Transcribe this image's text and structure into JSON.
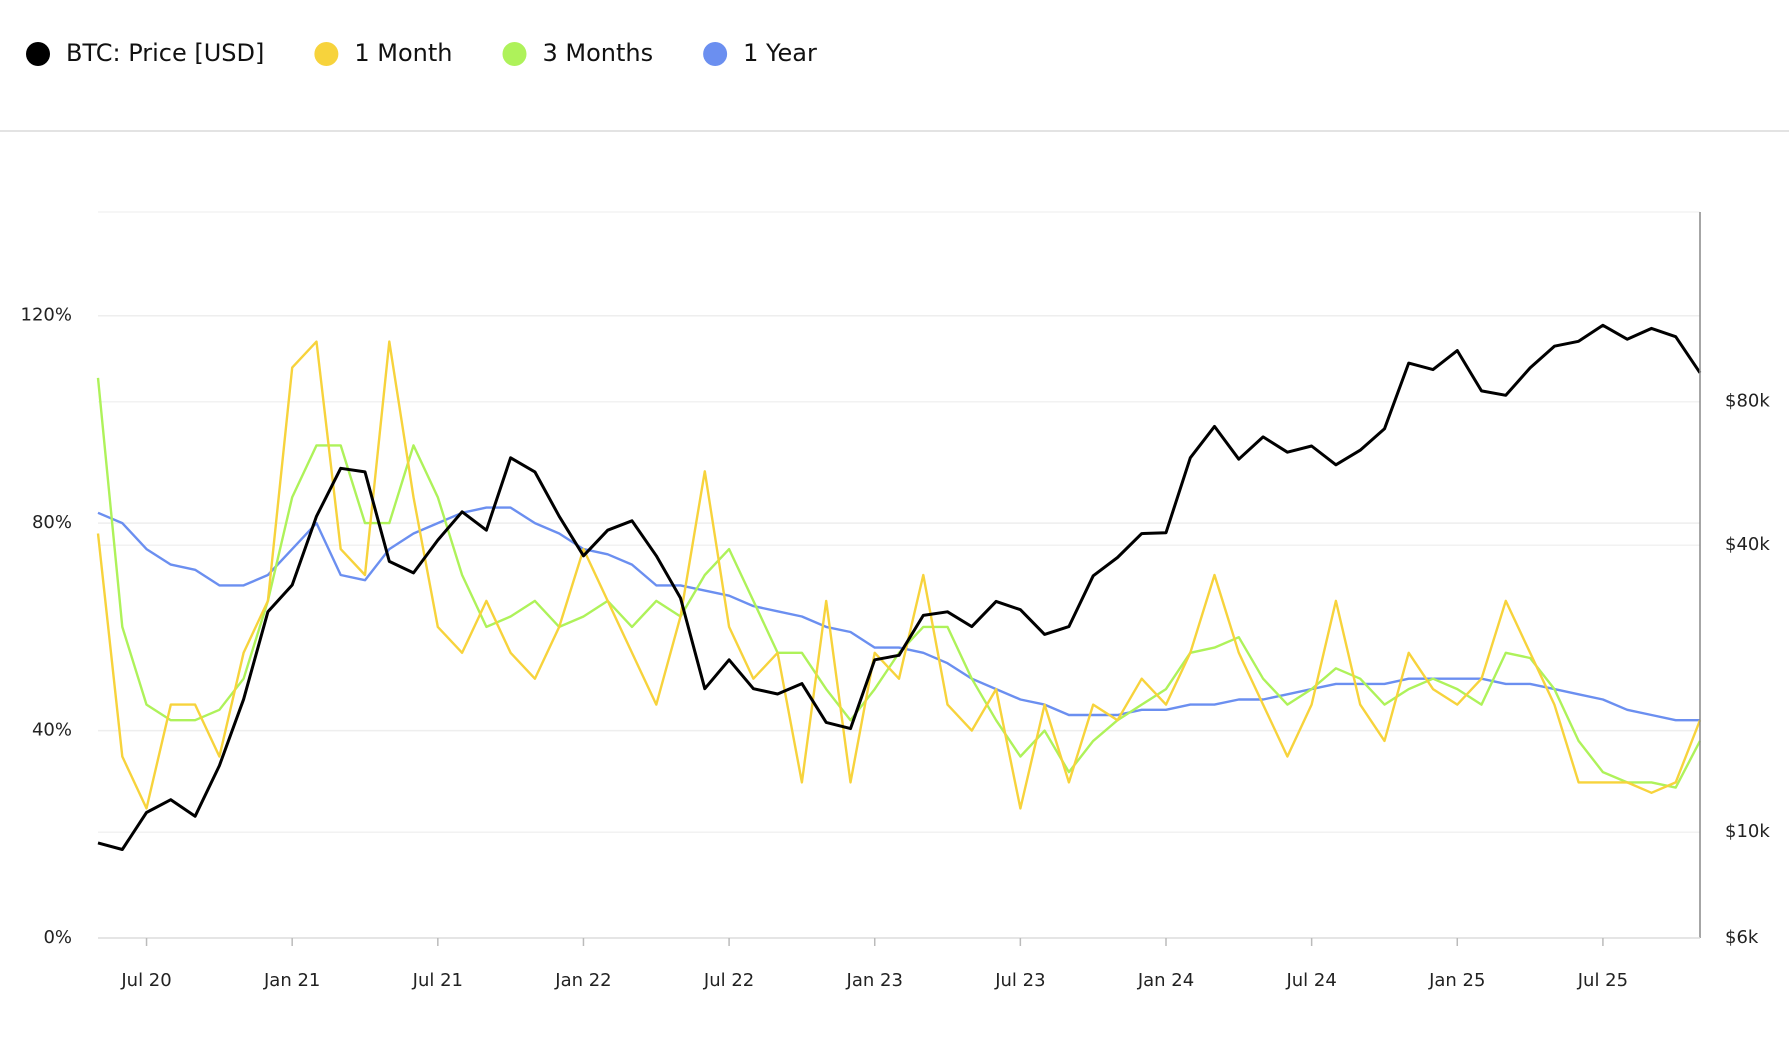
{
  "chart_data": {
    "type": "line",
    "x": [
      "2020-05",
      "2020-06",
      "2020-07",
      "2020-08",
      "2020-09",
      "2020-10",
      "2020-11",
      "2020-12",
      "2021-01",
      "2021-02",
      "2021-03",
      "2021-04",
      "2021-05",
      "2021-06",
      "2021-07",
      "2021-08",
      "2021-09",
      "2021-10",
      "2021-11",
      "2021-12",
      "2022-01",
      "2022-02",
      "2022-03",
      "2022-04",
      "2022-05",
      "2022-06",
      "2022-07",
      "2022-08",
      "2022-09",
      "2022-10",
      "2022-11",
      "2022-12",
      "2023-01",
      "2023-02",
      "2023-03",
      "2023-04",
      "2023-05",
      "2023-06",
      "2023-07",
      "2023-08",
      "2023-09",
      "2023-10",
      "2023-11",
      "2023-12",
      "2024-01",
      "2024-02",
      "2024-03",
      "2024-04",
      "2024-05",
      "2024-06",
      "2024-07",
      "2024-08",
      "2024-09",
      "2024-10",
      "2024-11",
      "2024-12",
      "2025-01",
      "2025-02",
      "2025-03",
      "2025-04",
      "2025-05",
      "2025-06",
      "2025-07",
      "2025-08",
      "2025-09",
      "2025-10",
      "2025-11"
    ],
    "xlim": [
      "2020-05",
      "2025-11"
    ],
    "xticks": [
      {
        "value": "2020-07",
        "label": "Jul 20"
      },
      {
        "value": "2021-01",
        "label": "Jan 21"
      },
      {
        "value": "2021-07",
        "label": "Jul 21"
      },
      {
        "value": "2022-01",
        "label": "Jan 22"
      },
      {
        "value": "2022-07",
        "label": "Jul 22"
      },
      {
        "value": "2023-01",
        "label": "Jan 23"
      },
      {
        "value": "2023-07",
        "label": "Jul 23"
      },
      {
        "value": "2024-01",
        "label": "Jan 24"
      },
      {
        "value": "2024-07",
        "label": "Jul 24"
      },
      {
        "value": "2025-01",
        "label": "Jan 25"
      },
      {
        "value": "2025-07",
        "label": "Jul 25"
      }
    ],
    "ylim": [
      0,
      140
    ],
    "yticks": [
      {
        "value": 0,
        "label": "0%"
      },
      {
        "value": 40,
        "label": "40%"
      },
      {
        "value": 80,
        "label": "80%"
      },
      {
        "value": 120,
        "label": "120%"
      }
    ],
    "y2lim": [
      6000,
      200000
    ],
    "y2scale": "log",
    "y2ticks": [
      {
        "value": 6000,
        "label": "$6k"
      },
      {
        "value": 10000,
        "label": "$10k"
      },
      {
        "value": 40000,
        "label": "$40k"
      },
      {
        "value": 80000,
        "label": "$80k"
      }
    ],
    "grid": true,
    "legend": "top-left",
    "series": [
      {
        "name": "BTC: Price [USD]",
        "color": "#000000",
        "axis": "y2",
        "values": [
          9500,
          9200,
          11000,
          11700,
          10800,
          13800,
          19000,
          29000,
          33000,
          46000,
          58000,
          57000,
          37000,
          35000,
          41000,
          47000,
          43000,
          61000,
          57000,
          46000,
          38000,
          43000,
          45000,
          38000,
          31000,
          20000,
          23000,
          20000,
          19500,
          20500,
          17000,
          16500,
          23000,
          23500,
          28500,
          29000,
          27000,
          30500,
          29300,
          26000,
          27000,
          34500,
          37700,
          42300,
          42500,
          61000,
          71000,
          60600,
          67500,
          62700,
          64600,
          59000,
          63300,
          70200,
          96400,
          93400,
          102400,
          84300,
          82500,
          94200,
          104600,
          107100,
          115700,
          108200,
          114000,
          109500,
          92000
        ]
      },
      {
        "name": "1 Month",
        "color": "#f7d33c",
        "values": [
          78,
          35,
          25,
          45,
          45,
          35,
          55,
          65,
          110,
          115,
          75,
          70,
          115,
          85,
          60,
          55,
          65,
          55,
          50,
          60,
          75,
          65,
          55,
          45,
          62,
          90,
          60,
          50,
          55,
          30,
          65,
          30,
          55,
          50,
          70,
          45,
          40,
          48,
          25,
          45,
          30,
          45,
          42,
          50,
          45,
          55,
          70,
          55,
          45,
          35,
          45,
          65,
          45,
          38,
          55,
          48,
          45,
          50,
          65,
          55,
          45,
          30,
          30,
          30,
          28,
          30,
          42
        ]
      },
      {
        "name": "3 Months",
        "color": "#aef25a",
        "values": [
          108,
          60,
          45,
          42,
          42,
          44,
          50,
          65,
          85,
          95,
          95,
          80,
          80,
          95,
          85,
          70,
          60,
          62,
          65,
          60,
          62,
          65,
          60,
          65,
          62,
          70,
          75,
          65,
          55,
          55,
          48,
          42,
          48,
          55,
          60,
          60,
          50,
          42,
          35,
          40,
          32,
          38,
          42,
          45,
          48,
          55,
          56,
          58,
          50,
          45,
          48,
          52,
          50,
          45,
          48,
          50,
          48,
          45,
          55,
          54,
          48,
          38,
          32,
          30,
          30,
          29,
          38
        ]
      },
      {
        "name": "1 Year",
        "color": "#6b8ff0",
        "values": [
          82,
          80,
          75,
          72,
          71,
          68,
          68,
          70,
          75,
          80,
          70,
          69,
          75,
          78,
          80,
          82,
          83,
          83,
          80,
          78,
          75,
          74,
          72,
          68,
          68,
          67,
          66,
          64,
          63,
          62,
          60,
          59,
          56,
          56,
          55,
          53,
          50,
          48,
          46,
          45,
          43,
          43,
          43,
          44,
          44,
          45,
          45,
          46,
          46,
          47,
          48,
          49,
          49,
          49,
          50,
          50,
          50,
          50,
          49,
          49,
          48,
          47,
          46,
          44,
          43,
          42,
          42
        ]
      }
    ]
  }
}
